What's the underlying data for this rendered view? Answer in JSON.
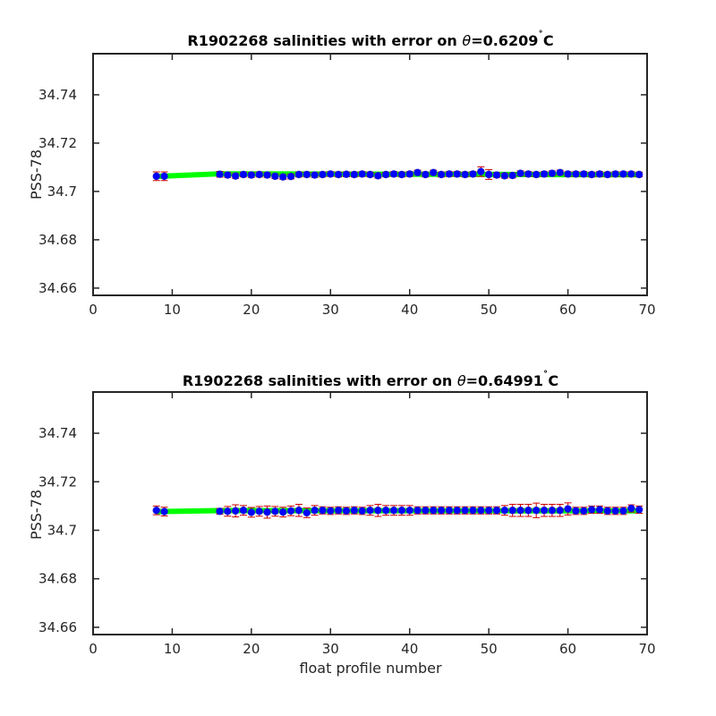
{
  "chart_data": [
    {
      "type": "scatter",
      "title": "R1902268 salinities with error on θ=0.6209˚C",
      "title_prefix": "R1902268 salinities with error on ",
      "title_symbol": "θ",
      "title_value": "=0.6209",
      "title_superscript": "˚",
      "title_unit": "C",
      "ylabel": "PSS-78",
      "xlabel": "",
      "xlim": [
        0,
        70
      ],
      "ylim": [
        34.657,
        34.757
      ],
      "xticks": [
        0,
        10,
        20,
        30,
        40,
        50,
        60,
        70
      ],
      "xtick_labels": [
        "0",
        "10",
        "20",
        "30",
        "40",
        "50",
        "60",
        "70"
      ],
      "yticks": [
        34.66,
        34.68,
        34.7,
        34.72,
        34.74
      ],
      "ytick_labels": [
        "34.66",
        "34.68",
        "34.7",
        "34.72",
        "34.74"
      ],
      "grid": false,
      "colors": {
        "points": "#0000ff",
        "fit": "#00ff00",
        "errorbar": "#cc0000"
      },
      "fit_line": {
        "x": [
          8,
          16,
          69
        ],
        "y": [
          34.7062,
          34.7073,
          34.7069
        ]
      },
      "series": [
        {
          "x": [
            8,
            9,
            16,
            17,
            18,
            19,
            20,
            21,
            22,
            23,
            24,
            25,
            26,
            27,
            28,
            29,
            30,
            31,
            32,
            33,
            34,
            35,
            36,
            37,
            38,
            39,
            40,
            41,
            42,
            43,
            44,
            45,
            46,
            47,
            48,
            49,
            50,
            51,
            52,
            53,
            54,
            55,
            56,
            57,
            58,
            59,
            60,
            61,
            62,
            63,
            64,
            65,
            66,
            67,
            68,
            69
          ],
          "y": [
            34.7063,
            34.7063,
            34.7071,
            34.7068,
            34.7064,
            34.707,
            34.7068,
            34.707,
            34.7068,
            34.7063,
            34.706,
            34.7062,
            34.707,
            34.707,
            34.7068,
            34.707,
            34.7072,
            34.707,
            34.7071,
            34.707,
            34.7072,
            34.707,
            34.7065,
            34.707,
            34.7072,
            34.707,
            34.7072,
            34.7078,
            34.707,
            34.7078,
            34.707,
            34.7072,
            34.7072,
            34.707,
            34.7072,
            34.7082,
            34.707,
            34.7068,
            34.7065,
            34.7066,
            34.7075,
            34.7072,
            34.707,
            34.7072,
            34.7075,
            34.7078,
            34.7072,
            34.7072,
            34.7072,
            34.707,
            34.7072,
            34.707,
            34.7072,
            34.7072,
            34.7072,
            34.707
          ],
          "err": [
            0.0018,
            0.0018,
            0.0012,
            0.001,
            0.001,
            0.001,
            0.001,
            0.001,
            0.001,
            0.001,
            0.001,
            0.001,
            0.001,
            0.001,
            0.001,
            0.001,
            0.001,
            0.001,
            0.001,
            0.001,
            0.001,
            0.001,
            0.001,
            0.001,
            0.001,
            0.001,
            0.001,
            0.001,
            0.001,
            0.001,
            0.001,
            0.001,
            0.001,
            0.001,
            0.001,
            0.002,
            0.002,
            0.001,
            0.001,
            0.001,
            0.001,
            0.001,
            0.001,
            0.001,
            0.001,
            0.001,
            0.001,
            0.001,
            0.001,
            0.001,
            0.001,
            0.001,
            0.001,
            0.001,
            0.001,
            0.001
          ]
        }
      ]
    },
    {
      "type": "scatter",
      "title": "R1902268 salinities with error on θ=0.64991˚C",
      "title_prefix": "R1902268 salinities with error on ",
      "title_symbol": "θ",
      "title_value": "=0.64991",
      "title_superscript": "˚",
      "title_unit": "C",
      "ylabel": "PSS-78",
      "xlabel": "float profile number",
      "xlim": [
        0,
        70
      ],
      "ylim": [
        34.657,
        34.757
      ],
      "xticks": [
        0,
        10,
        20,
        30,
        40,
        50,
        60,
        70
      ],
      "xtick_labels": [
        "0",
        "10",
        "20",
        "30",
        "40",
        "50",
        "60",
        "70"
      ],
      "yticks": [
        34.66,
        34.68,
        34.7,
        34.72,
        34.74
      ],
      "ytick_labels": [
        "34.66",
        "34.68",
        "34.7",
        "34.72",
        "34.74"
      ],
      "grid": false,
      "colors": {
        "points": "#0000ff",
        "fit": "#00ff00",
        "errorbar": "#cc0000"
      },
      "fit_line": {
        "x": [
          8,
          16,
          69
        ],
        "y": [
          34.7077,
          34.7081,
          34.708
        ]
      },
      "series": [
        {
          "x": [
            8,
            9,
            16,
            17,
            18,
            19,
            20,
            21,
            22,
            23,
            24,
            25,
            26,
            27,
            28,
            29,
            30,
            31,
            32,
            33,
            34,
            35,
            36,
            37,
            38,
            39,
            40,
            41,
            42,
            43,
            44,
            45,
            46,
            47,
            48,
            49,
            50,
            51,
            52,
            53,
            54,
            55,
            56,
            57,
            58,
            59,
            60,
            61,
            62,
            63,
            64,
            65,
            66,
            67,
            68,
            69
          ],
          "y": [
            34.7082,
            34.7077,
            34.7078,
            34.7078,
            34.708,
            34.7082,
            34.7074,
            34.7078,
            34.7075,
            34.7078,
            34.7075,
            34.708,
            34.7082,
            34.7072,
            34.7082,
            34.7082,
            34.708,
            34.7082,
            34.708,
            34.7082,
            34.708,
            34.7082,
            34.7082,
            34.7082,
            34.7082,
            34.7082,
            34.7082,
            34.7082,
            34.7082,
            34.7082,
            34.7082,
            34.7082,
            34.7082,
            34.7082,
            34.7082,
            34.7082,
            34.7082,
            34.7082,
            34.7082,
            34.7082,
            34.7082,
            34.7082,
            34.7082,
            34.7082,
            34.7082,
            34.7082,
            34.7088,
            34.708,
            34.708,
            34.7085,
            34.7085,
            34.708,
            34.708,
            34.708,
            34.709,
            34.7085
          ],
          "err": [
            0.0018,
            0.0018,
            0.0012,
            0.002,
            0.0025,
            0.002,
            0.002,
            0.002,
            0.0025,
            0.002,
            0.002,
            0.002,
            0.0025,
            0.002,
            0.002,
            0.0015,
            0.0015,
            0.0015,
            0.0015,
            0.0015,
            0.0015,
            0.002,
            0.0025,
            0.002,
            0.002,
            0.002,
            0.002,
            0.0015,
            0.0015,
            0.0015,
            0.0015,
            0.0015,
            0.0015,
            0.0015,
            0.0015,
            0.0015,
            0.0015,
            0.0015,
            0.002,
            0.0025,
            0.0025,
            0.0025,
            0.003,
            0.0025,
            0.0025,
            0.0025,
            0.0025,
            0.0015,
            0.0015,
            0.0015,
            0.0015,
            0.0015,
            0.0015,
            0.0015,
            0.0015,
            0.0015
          ]
        }
      ]
    }
  ]
}
